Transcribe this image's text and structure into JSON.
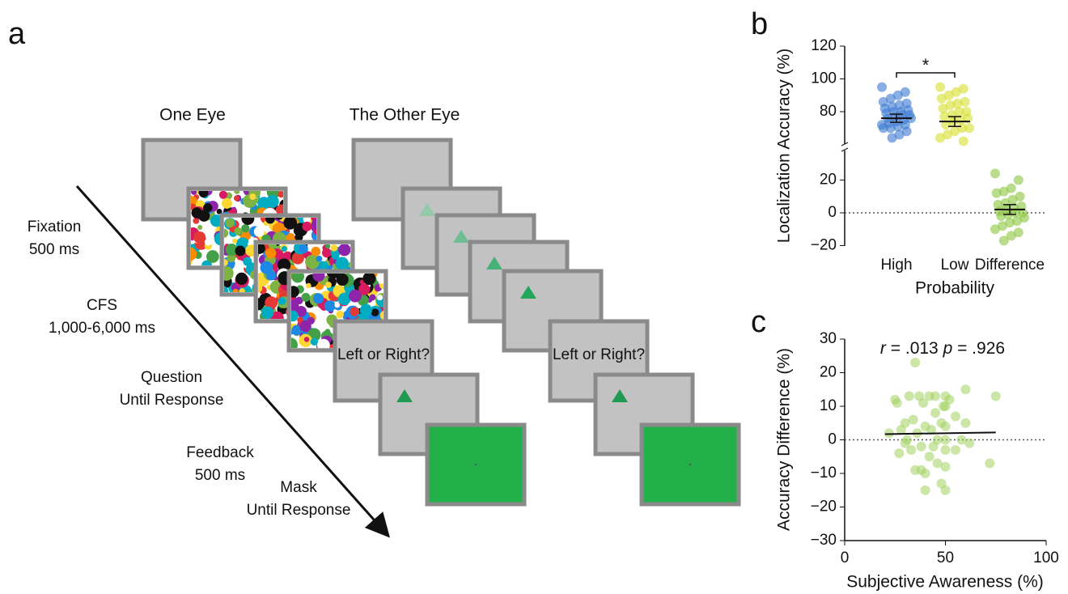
{
  "panel_labels": [
    "a",
    "b",
    "c"
  ],
  "diagram": {
    "eye_labels": [
      "One Eye",
      "The Other Eye"
    ],
    "steps": [
      {
        "name": "Fixation",
        "duration": "500 ms"
      },
      {
        "name": "CFS",
        "duration": "1,000-6,000 ms"
      },
      {
        "name": "Question",
        "duration": "Until Response"
      },
      {
        "name": "Feedback",
        "duration": "500 ms"
      },
      {
        "name": "Mask",
        "duration": "Until Response"
      }
    ],
    "question_text": "Left or Right?"
  },
  "chart_data": [
    {
      "type": "strip",
      "ylabel": "Localization Accuracy (%)",
      "xlabel": "Probability",
      "categories": [
        "High",
        "Low",
        "Difference"
      ],
      "values": [
        [
          95,
          92,
          90,
          88,
          86,
          85,
          84,
          83,
          82,
          81,
          80,
          80,
          79,
          78,
          78,
          77,
          76,
          76,
          75,
          74,
          73,
          72,
          72,
          71,
          70,
          70,
          68,
          66,
          64
        ],
        [
          95,
          94,
          92,
          90,
          88,
          86,
          85,
          84,
          82,
          80,
          80,
          78,
          77,
          76,
          75,
          74,
          72,
          70,
          70,
          68,
          66,
          64,
          62
        ],
        [
          24,
          20,
          15,
          13,
          12,
          10,
          8,
          6,
          5,
          4,
          3,
          2,
          1,
          0,
          0,
          -1,
          -2,
          -3,
          -5,
          -6,
          -8,
          -10,
          -12,
          -14,
          -17
        ]
      ],
      "means": [
        76,
        74,
        2
      ],
      "errors": [
        2.5,
        3,
        3
      ],
      "colors": [
        "#3a78d0",
        "#d6df2c",
        "#8cc63f"
      ],
      "ylim": [
        -20,
        120
      ],
      "ybreak": [
        38,
        60
      ],
      "yticks": [
        {
          "value": -20,
          "label": "−20"
        },
        0,
        20,
        80,
        100,
        120
      ],
      "reference_line": 0,
      "annotation": "*"
    },
    {
      "type": "scatter",
      "xlabel": "Subjective Awareness (%)",
      "ylabel": "Accuracy Difference (%)",
      "x": [
        22,
        25,
        26,
        27,
        28,
        30,
        30,
        31,
        32,
        33,
        34,
        35,
        35,
        36,
        37,
        38,
        38,
        39,
        40,
        40,
        40,
        42,
        42,
        43,
        44,
        45,
        45,
        46,
        46,
        48,
        48,
        49,
        50,
        50,
        50,
        50,
        50,
        50,
        50,
        52,
        55,
        55,
        58,
        60,
        60,
        62,
        72,
        75
      ],
      "values": [
        2,
        12,
        11,
        -4,
        3,
        -1,
        5,
        0,
        13,
        -3,
        6,
        -9,
        23,
        2,
        13,
        -2,
        -9,
        11,
        4,
        -15,
        -10,
        13,
        -5,
        3,
        -2,
        8,
        13,
        0,
        -7,
        -13,
        5,
        10,
        -15,
        13,
        4,
        0,
        -3,
        -8,
        10,
        12,
        7,
        -3,
        0,
        15,
        5,
        -1,
        -7,
        13
      ],
      "color": "#a3d160",
      "trend": {
        "x": [
          20,
          75
        ],
        "values": [
          1.7,
          2.2
        ]
      },
      "xlim": [
        0,
        100
      ],
      "xticks": [
        0,
        50,
        100
      ],
      "ylim": [
        -30,
        30
      ],
      "yticks": [
        {
          "value": -30,
          "label": "−30"
        },
        {
          "value": -20,
          "label": "−20"
        },
        {
          "value": -10,
          "label": "−10"
        },
        0,
        10,
        20,
        30
      ],
      "reference_line": 0,
      "stat_text": [
        "r",
        " = .013 ",
        "p",
        " = .926"
      ]
    }
  ]
}
